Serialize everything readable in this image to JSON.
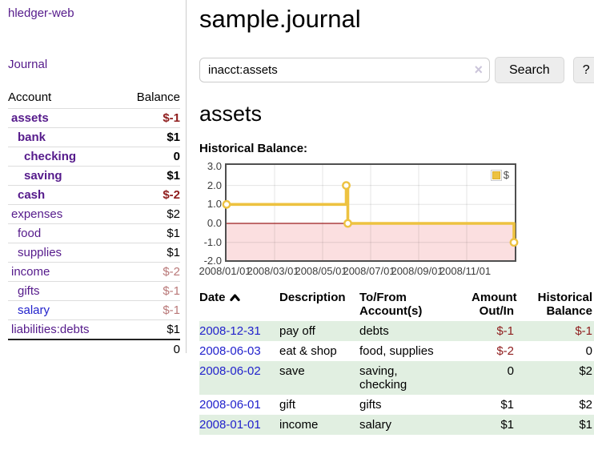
{
  "app": {
    "brand": "hledger-web"
  },
  "sidebar": {
    "journal_link": "Journal",
    "accounts_table": {
      "headers": {
        "account": "Account",
        "balance": "Balance"
      },
      "rows": [
        {
          "name": "assets",
          "balance": "$-1",
          "level": 1,
          "bold": true,
          "balance_style": "negative-strong",
          "link_style": "purple"
        },
        {
          "name": "bank",
          "balance": "$1",
          "level": 2,
          "bold": true,
          "balance_style": "normal",
          "link_style": "purple"
        },
        {
          "name": "checking",
          "balance": "0",
          "level": 3,
          "bold": true,
          "balance_style": "normal",
          "link_style": "purple"
        },
        {
          "name": "saving",
          "balance": "$1",
          "level": 3,
          "bold": true,
          "balance_style": "normal",
          "link_style": "purple"
        },
        {
          "name": "cash",
          "balance": "$-2",
          "level": 2,
          "bold": true,
          "balance_style": "negative-strong",
          "link_style": "purple"
        },
        {
          "name": "expenses",
          "balance": "$2",
          "level": 1,
          "bold": false,
          "balance_style": "normal",
          "link_style": "purple"
        },
        {
          "name": "food",
          "balance": "$1",
          "level": 2,
          "bold": false,
          "balance_style": "normal",
          "link_style": "purple"
        },
        {
          "name": "supplies",
          "balance": "$1",
          "level": 2,
          "bold": false,
          "balance_style": "normal",
          "link_style": "purple"
        },
        {
          "name": "income",
          "balance": "$-2",
          "level": 1,
          "bold": false,
          "balance_style": "negative-soft",
          "link_style": "purple"
        },
        {
          "name": "gifts",
          "balance": "$-1",
          "level": 2,
          "bold": false,
          "balance_style": "negative-soft",
          "link_style": "purple"
        },
        {
          "name": "salary",
          "balance": "$-1",
          "level": 2,
          "bold": false,
          "balance_style": "negative-soft",
          "link_style": "blue"
        },
        {
          "name": "liabilities:debts",
          "balance": "$1",
          "level": 1,
          "bold": false,
          "balance_style": "normal",
          "link_style": "purple"
        }
      ],
      "total": "0"
    }
  },
  "main": {
    "title": "sample.journal",
    "search": {
      "value": "inacct:assets",
      "clear_icon": "×",
      "search_button": "Search",
      "help_button": "?"
    },
    "account_heading": "assets",
    "chart_title": "Historical Balance:"
  },
  "chart_data": {
    "type": "line",
    "step": true,
    "title": "Historical Balance:",
    "series": [
      {
        "name": "$",
        "color": "#edc240",
        "points": [
          [
            "2008-01-01",
            1
          ],
          [
            "2008-06-01",
            2
          ],
          [
            "2008-06-03",
            0
          ],
          [
            "2008-12-31",
            -1
          ]
        ]
      }
    ],
    "x_ticks": [
      "2008/01/01",
      "2008/03/01",
      "2008/05/01",
      "2008/07/01",
      "2008/09/01",
      "2008/11/01"
    ],
    "y_ticks": [
      "3.0",
      "2.0",
      "1.0",
      "0.0",
      "-1.0",
      "-2.0"
    ],
    "xlim": [
      "2008-01-01",
      "2009-01-01"
    ],
    "ylim": [
      -2,
      3
    ],
    "grid": true,
    "legend": {
      "label": "$",
      "position": "top-right"
    },
    "negative_region_fill": "#fbdfe0",
    "zero_line_color": "#9b1c1c"
  },
  "register": {
    "headers": {
      "date": "Date",
      "description": "Description",
      "accounts": "To/From Account(s)",
      "amount": "Amount Out/In",
      "balance": "Historical Balance"
    },
    "rows": [
      {
        "date": "2008-12-31",
        "description": "pay off",
        "accounts": "debts",
        "amount": "$-1",
        "amount_negative": true,
        "balance": "$-1",
        "balance_negative": true,
        "highlight": true
      },
      {
        "date": "2008-06-03",
        "description": "eat & shop",
        "accounts": "food, supplies",
        "amount": "$-2",
        "amount_negative": true,
        "balance": "0",
        "balance_negative": false,
        "highlight": false
      },
      {
        "date": "2008-06-02",
        "description": "save",
        "accounts": "saving,\nchecking",
        "amount": "0",
        "amount_negative": false,
        "balance": "$2",
        "balance_negative": false,
        "highlight": true
      },
      {
        "date": "2008-06-01",
        "description": "gift",
        "accounts": "gifts",
        "amount": "$1",
        "amount_negative": false,
        "balance": "$2",
        "balance_negative": false,
        "highlight": false
      },
      {
        "date": "2008-01-01",
        "description": "income",
        "accounts": "salary",
        "amount": "$1",
        "amount_negative": false,
        "balance": "$1",
        "balance_negative": false,
        "highlight": true
      }
    ]
  },
  "colors": {
    "link_purple": "#551a8b",
    "link_blue": "#2222cc",
    "negative_strong": "#8f1d1d",
    "negative_soft": "#b97878",
    "row_highlight": "#e1efe1",
    "chart_line": "#edc240"
  }
}
